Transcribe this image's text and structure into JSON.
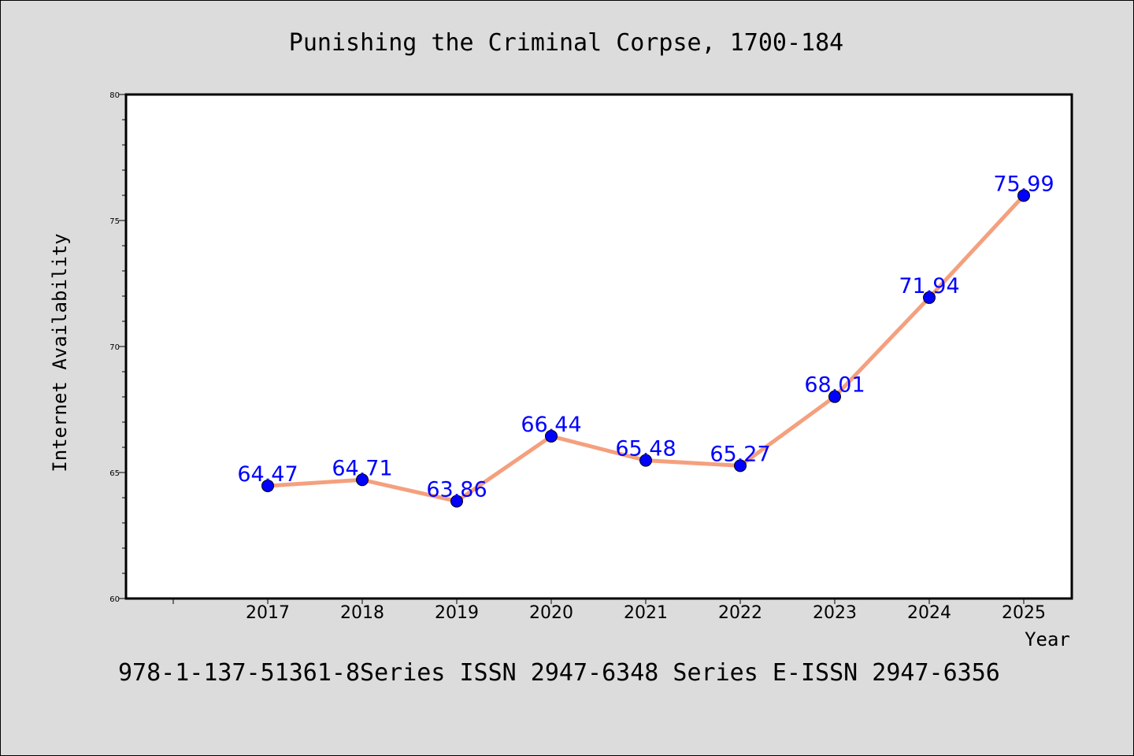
{
  "chart_data": {
    "type": "line",
    "title": "Punishing the Criminal Corpse, 1700-184",
    "xlabel": "Year",
    "ylabel": "Internet Availability",
    "footer": "978-1-137-51361-8Series ISSN 2947-6348 Series E-ISSN 2947-6356",
    "categories": [
      "2017",
      "2018",
      "2019",
      "2020",
      "2021",
      "2022",
      "2023",
      "2024",
      "2025"
    ],
    "series": [
      {
        "values": [
          64.47,
          64.71,
          63.86,
          66.44,
          65.48,
          65.27,
          68.01,
          71.94,
          75.99
        ]
      }
    ],
    "data_labels": [
      "64.47",
      "64.71",
      "63.86",
      "66.44",
      "65.48",
      "65.27",
      "68.01",
      "71.94",
      "75.99"
    ],
    "ylim": [
      60,
      80
    ],
    "y_ticks": [
      "60",
      "65",
      "70",
      "75",
      "80"
    ],
    "grid": false,
    "legend": "none",
    "colors": {
      "line": "#f4a07e",
      "marker": "#0000ff",
      "data_label": "#0000ff",
      "plot_bg": "#ffffff",
      "page_bg": "#dcdcdc"
    }
  }
}
